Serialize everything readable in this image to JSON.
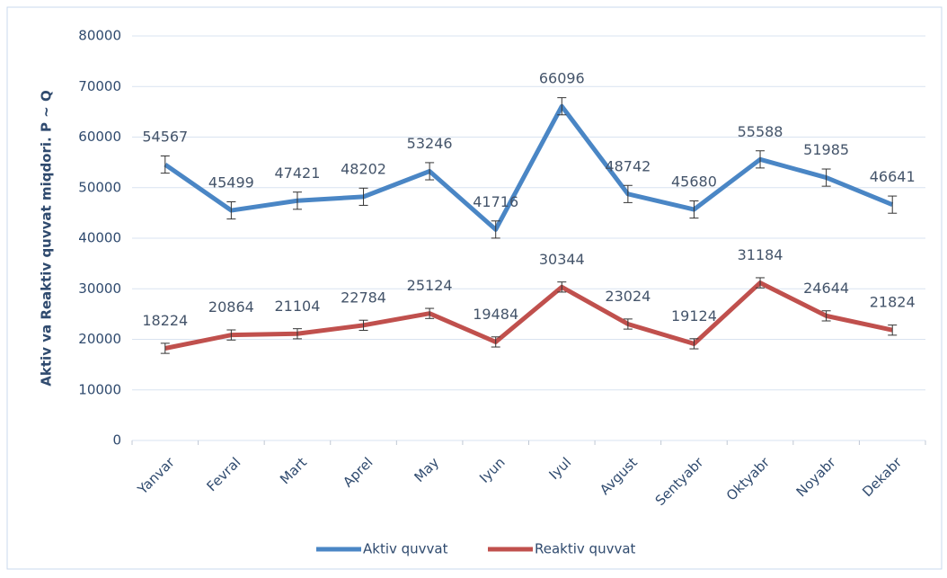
{
  "chart_data": {
    "type": "line",
    "y_label": "Aktiv va Reaktiv quvvat miqdori. P ~ Q",
    "categories": [
      "Yanvar",
      "Fevral",
      "Mart",
      "Aprel",
      "May",
      "Iyun",
      "Iyul",
      "Avgust",
      "Sentyabr",
      "Oktyabr",
      "Noyabr",
      "Dekabr"
    ],
    "series": [
      {
        "name": "Aktiv quvvat",
        "color": "#4a86c5",
        "values": [
          54567,
          45499,
          47421,
          48202,
          53246,
          41716,
          66096,
          48742,
          45680,
          55588,
          51985,
          46641
        ],
        "errors": [
          1700,
          1700,
          1700,
          1700,
          1700,
          1700,
          1700,
          1700,
          1700,
          1700,
          1700,
          1700
        ]
      },
      {
        "name": "Reaktiv quvvat",
        "color": "#c0504d",
        "values": [
          18224,
          20864,
          21104,
          22784,
          25124,
          19484,
          30344,
          23024,
          19124,
          31184,
          24644,
          21824
        ],
        "errors": [
          1000,
          1000,
          1000,
          1000,
          1000,
          1000,
          1000,
          1000,
          1000,
          1000,
          1000,
          1000
        ]
      }
    ],
    "ylim": [
      0,
      80000
    ],
    "yticks": [
      0,
      10000,
      20000,
      30000,
      40000,
      50000,
      60000,
      70000,
      80000
    ],
    "grid": true,
    "legend": "bottom"
  }
}
